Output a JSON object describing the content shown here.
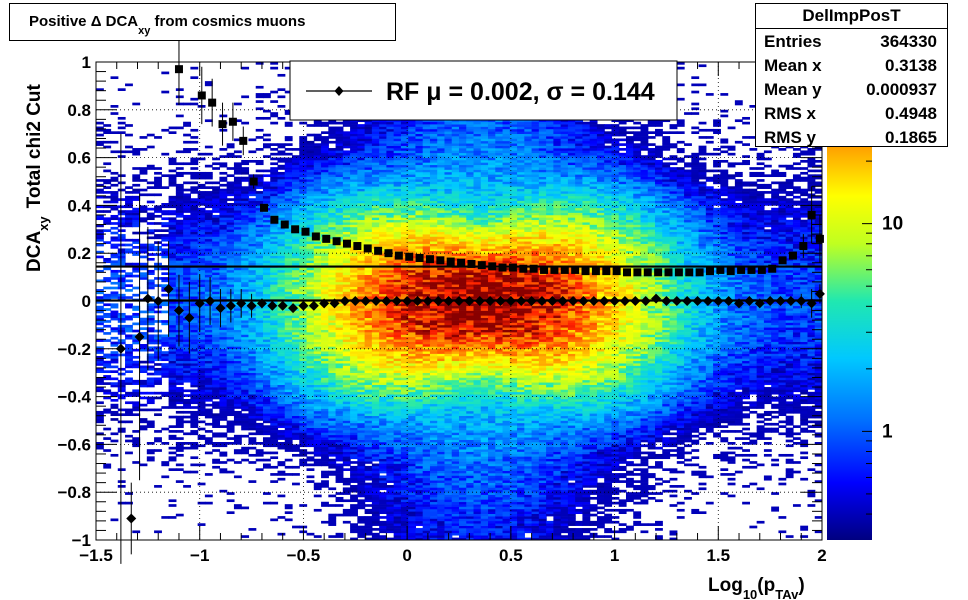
{
  "title": {
    "prefix": "Positive Δ DCA",
    "sub": "xy",
    "suffix": " from cosmics muons"
  },
  "stats": {
    "name": "DelImpPosT",
    "rows": [
      {
        "label": "Entries",
        "value": "364330"
      },
      {
        "label": "Mean x",
        "value": "0.3138"
      },
      {
        "label": "Mean y",
        "value": "0.000937"
      },
      {
        "label": "RMS x",
        "value": "0.4948"
      },
      {
        "label": "RMS y",
        "value": "0.1865"
      }
    ]
  },
  "legend": {
    "text": "RF μ =  0.002, σ =   0.144"
  },
  "axes": {
    "xlabel_main": "Log",
    "xlabel_sub1": "10",
    "xlabel_mid": "(p",
    "xlabel_sub2": "TAv",
    "xlabel_end": ")",
    "ylabel_main": "DCA",
    "ylabel_sub": "xy",
    "ylabel_rest": "Total chi2 Cut",
    "x_ticks": [
      "−1.5",
      "−1",
      "−0.5",
      "0",
      "0.5",
      "1",
      "1.5",
      "2"
    ],
    "y_ticks": [
      "−1",
      "−0.8",
      "−0.6",
      "−0.4",
      "−0.2",
      "0",
      "0.2",
      "0.4",
      "0.6",
      "0.8",
      "1"
    ],
    "palette_ticks": [
      "1",
      "10"
    ]
  },
  "chart_data": {
    "type": "heatmap",
    "xlim": [
      -1.5,
      2
    ],
    "ylim": [
      -1,
      1
    ],
    "grid": true,
    "legend_placement": "top-center",
    "palette": "rainbow",
    "palette_scale": "log",
    "palette_range": [
      0.3,
      60
    ],
    "mean_series": {
      "marker": "diamond",
      "points": [
        {
          "x": -1.38,
          "y": -0.2,
          "err": 0.9
        },
        {
          "x": -1.33,
          "y": -0.91,
          "err": 0.15
        },
        {
          "x": -1.29,
          "y": -0.15,
          "err": 0.6
        },
        {
          "x": -1.25,
          "y": 0.01,
          "err": 0.3
        },
        {
          "x": -1.2,
          "y": 0.0,
          "err": 0.25
        },
        {
          "x": -1.15,
          "y": 0.05,
          "err": 0.2
        },
        {
          "x": -1.1,
          "y": -0.04,
          "err": 0.15
        },
        {
          "x": -1.05,
          "y": -0.07,
          "err": 0.15
        },
        {
          "x": -1.0,
          "y": -0.01,
          "err": 0.12
        },
        {
          "x": -0.95,
          "y": 0.0,
          "err": 0.1
        },
        {
          "x": -0.9,
          "y": -0.03,
          "err": 0.08
        },
        {
          "x": -0.85,
          "y": -0.02,
          "err": 0.07
        },
        {
          "x": -0.8,
          "y": -0.01,
          "err": 0.06
        },
        {
          "x": -0.75,
          "y": -0.02,
          "err": 0.05
        },
        {
          "x": -0.7,
          "y": -0.01,
          "err": 0.02
        },
        {
          "x": -0.65,
          "y": -0.02
        },
        {
          "x": -0.6,
          "y": -0.02
        },
        {
          "x": -0.55,
          "y": -0.03
        },
        {
          "x": -0.5,
          "y": -0.02
        },
        {
          "x": -0.45,
          "y": -0.02
        },
        {
          "x": -0.4,
          "y": -0.01
        },
        {
          "x": -0.35,
          "y": -0.01
        },
        {
          "x": -0.3,
          "y": 0.0
        },
        {
          "x": -0.25,
          "y": 0.0
        },
        {
          "x": -0.2,
          "y": 0.0
        },
        {
          "x": -0.15,
          "y": 0.0
        },
        {
          "x": -0.1,
          "y": 0.0
        },
        {
          "x": -0.05,
          "y": 0.0
        },
        {
          "x": 0.0,
          "y": 0.0
        },
        {
          "x": 0.05,
          "y": 0.0
        },
        {
          "x": 0.1,
          "y": 0.0
        },
        {
          "x": 0.15,
          "y": 0.0
        },
        {
          "x": 0.2,
          "y": 0.0
        },
        {
          "x": 0.25,
          "y": 0.0
        },
        {
          "x": 0.3,
          "y": 0.0
        },
        {
          "x": 0.35,
          "y": 0.0
        },
        {
          "x": 0.4,
          "y": 0.0
        },
        {
          "x": 0.45,
          "y": 0.0
        },
        {
          "x": 0.5,
          "y": 0.0
        },
        {
          "x": 0.55,
          "y": 0.0
        },
        {
          "x": 0.6,
          "y": 0.0
        },
        {
          "x": 0.65,
          "y": 0.0
        },
        {
          "x": 0.7,
          "y": 0.0
        },
        {
          "x": 0.75,
          "y": 0.0
        },
        {
          "x": 0.8,
          "y": 0.0
        },
        {
          "x": 0.85,
          "y": 0.0
        },
        {
          "x": 0.9,
          "y": 0.0
        },
        {
          "x": 0.95,
          "y": 0.0
        },
        {
          "x": 1.0,
          "y": 0.0
        },
        {
          "x": 1.05,
          "y": 0.0
        },
        {
          "x": 1.1,
          "y": 0.0
        },
        {
          "x": 1.15,
          "y": 0.0
        },
        {
          "x": 1.2,
          "y": 0.01
        },
        {
          "x": 1.25,
          "y": 0.0
        },
        {
          "x": 1.3,
          "y": 0.0
        },
        {
          "x": 1.35,
          "y": 0.0
        },
        {
          "x": 1.4,
          "y": 0.0
        },
        {
          "x": 1.45,
          "y": 0.0
        },
        {
          "x": 1.5,
          "y": 0.0
        },
        {
          "x": 1.55,
          "y": 0.0
        },
        {
          "x": 1.6,
          "y": -0.01
        },
        {
          "x": 1.65,
          "y": 0.0
        },
        {
          "x": 1.7,
          "y": -0.01
        },
        {
          "x": 1.75,
          "y": 0.0
        },
        {
          "x": 1.8,
          "y": 0.0
        },
        {
          "x": 1.85,
          "y": 0.0
        },
        {
          "x": 1.9,
          "y": 0.0,
          "err": 0.03
        },
        {
          "x": 1.95,
          "y": -0.01,
          "err": 0.06
        },
        {
          "x": 1.99,
          "y": 0.03,
          "err": 0.04
        }
      ]
    },
    "sigma_series": {
      "marker": "square",
      "points": [
        {
          "x": -1.1,
          "y": 0.97,
          "err": 0.15
        },
        {
          "x": -0.99,
          "y": 0.86,
          "err": 0.12
        },
        {
          "x": -0.94,
          "y": 0.83,
          "err": 0.1
        },
        {
          "x": -0.89,
          "y": 0.74,
          "err": 0.09
        },
        {
          "x": -0.84,
          "y": 0.75,
          "err": 0.08
        },
        {
          "x": -0.79,
          "y": 0.67,
          "err": 0.06
        },
        {
          "x": -0.74,
          "y": 0.5,
          "err": 0.03
        },
        {
          "x": -0.69,
          "y": 0.39
        },
        {
          "x": -0.64,
          "y": 0.34
        },
        {
          "x": -0.59,
          "y": 0.32
        },
        {
          "x": -0.54,
          "y": 0.3
        },
        {
          "x": -0.49,
          "y": 0.29
        },
        {
          "x": -0.44,
          "y": 0.27
        },
        {
          "x": -0.39,
          "y": 0.26
        },
        {
          "x": -0.34,
          "y": 0.25
        },
        {
          "x": -0.29,
          "y": 0.24
        },
        {
          "x": -0.24,
          "y": 0.23
        },
        {
          "x": -0.19,
          "y": 0.22
        },
        {
          "x": -0.14,
          "y": 0.21
        },
        {
          "x": -0.09,
          "y": 0.2
        },
        {
          "x": -0.04,
          "y": 0.19
        },
        {
          "x": 0.01,
          "y": 0.185
        },
        {
          "x": 0.06,
          "y": 0.18
        },
        {
          "x": 0.11,
          "y": 0.175
        },
        {
          "x": 0.16,
          "y": 0.17
        },
        {
          "x": 0.21,
          "y": 0.165
        },
        {
          "x": 0.26,
          "y": 0.16
        },
        {
          "x": 0.31,
          "y": 0.155
        },
        {
          "x": 0.36,
          "y": 0.15
        },
        {
          "x": 0.41,
          "y": 0.145
        },
        {
          "x": 0.46,
          "y": 0.14
        },
        {
          "x": 0.51,
          "y": 0.14
        },
        {
          "x": 0.56,
          "y": 0.135
        },
        {
          "x": 0.61,
          "y": 0.135
        },
        {
          "x": 0.66,
          "y": 0.13
        },
        {
          "x": 0.71,
          "y": 0.13
        },
        {
          "x": 0.76,
          "y": 0.13
        },
        {
          "x": 0.81,
          "y": 0.13
        },
        {
          "x": 0.86,
          "y": 0.125
        },
        {
          "x": 0.91,
          "y": 0.125
        },
        {
          "x": 0.96,
          "y": 0.125
        },
        {
          "x": 1.01,
          "y": 0.125
        },
        {
          "x": 1.06,
          "y": 0.12
        },
        {
          "x": 1.11,
          "y": 0.12
        },
        {
          "x": 1.16,
          "y": 0.12
        },
        {
          "x": 1.21,
          "y": 0.12
        },
        {
          "x": 1.26,
          "y": 0.12
        },
        {
          "x": 1.31,
          "y": 0.12
        },
        {
          "x": 1.36,
          "y": 0.12
        },
        {
          "x": 1.41,
          "y": 0.12
        },
        {
          "x": 1.46,
          "y": 0.125
        },
        {
          "x": 1.51,
          "y": 0.13
        },
        {
          "x": 1.56,
          "y": 0.125
        },
        {
          "x": 1.61,
          "y": 0.13
        },
        {
          "x": 1.66,
          "y": 0.13
        },
        {
          "x": 1.71,
          "y": 0.13
        },
        {
          "x": 1.76,
          "y": 0.135
        },
        {
          "x": 1.81,
          "y": 0.17
        },
        {
          "x": 1.86,
          "y": 0.19
        },
        {
          "x": 1.91,
          "y": 0.23,
          "err": 0.05
        },
        {
          "x": 1.95,
          "y": 0.36,
          "err": 0.12
        },
        {
          "x": 1.99,
          "y": 0.26,
          "err": 0.1
        }
      ]
    },
    "fit_lines": [
      {
        "name": "sigma",
        "y": 0.144
      },
      {
        "name": "mean",
        "y": 0.002
      }
    ]
  }
}
